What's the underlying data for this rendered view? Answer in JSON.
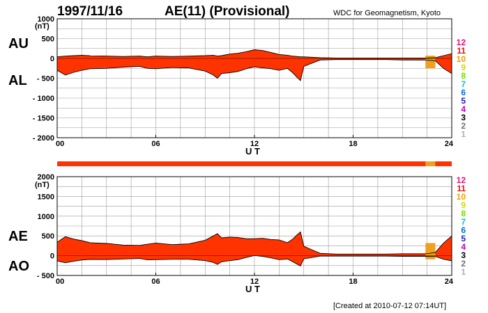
{
  "header": {
    "date": "1997/11/16",
    "title": "AE(11) (Provisional)",
    "source": "WDC for Geomagnetism, Kyoto"
  },
  "footer": {
    "created": "[Created at 2010-07-12 07:14UT]"
  },
  "legend_levels": [
    {
      "label": "12",
      "color": "#e8107a"
    },
    {
      "label": "11",
      "color": "#e81010"
    },
    {
      "label": "10",
      "color": "#f0a000"
    },
    {
      "label": "9",
      "color": "#d8d800"
    },
    {
      "label": "8",
      "color": "#70e000"
    },
    {
      "label": "7",
      "color": "#00c8c8"
    },
    {
      "label": "6",
      "color": "#0070e0"
    },
    {
      "label": "5",
      "color": "#2020c0"
    },
    {
      "label": "4",
      "color": "#c000c0"
    },
    {
      "label": "3",
      "color": "#000000"
    },
    {
      "label": "2",
      "color": "#707070"
    },
    {
      "label": "1",
      "color": "#b0b0b0"
    }
  ],
  "colors": {
    "fill_11_stations": "#ff3300",
    "fill_10_stations": "#f0a020",
    "outline": "#000000"
  },
  "chart_data": [
    {
      "type": "area",
      "panel": "AU/AL",
      "upper_label": "AU",
      "lower_label": "AL",
      "unit": "(nT)",
      "xlabel": "U T",
      "xlim": [
        0,
        24
      ],
      "xticks": [
        "00",
        "06",
        "12",
        "18",
        "24"
      ],
      "ylim": [
        -2000,
        1000
      ],
      "yticks": [
        "1000",
        "500",
        "0",
        "- 500",
        "- 1000",
        "- 1500",
        "- 2000"
      ],
      "ytick_values": [
        1000,
        500,
        0,
        -500,
        -1000,
        -1500,
        -2000
      ],
      "grid": true,
      "x": [
        0,
        0.5,
        1,
        1.5,
        2,
        3,
        4,
        5,
        5.5,
        6,
        7,
        8,
        9,
        9.5,
        9.75,
        10,
        10.5,
        11,
        11.5,
        12,
        12.5,
        13,
        13.5,
        14,
        14.3,
        14.6,
        14.8,
        15,
        15.5,
        16,
        17,
        18,
        19,
        20,
        21,
        22,
        22.5,
        23,
        23.5,
        24
      ],
      "AU": [
        40,
        60,
        70,
        80,
        70,
        60,
        50,
        60,
        40,
        60,
        50,
        60,
        70,
        80,
        60,
        70,
        110,
        130,
        170,
        220,
        200,
        150,
        100,
        80,
        60,
        50,
        40,
        40,
        30,
        20,
        10,
        10,
        10,
        10,
        10,
        10,
        10,
        20,
        70,
        120
      ],
      "AL": [
        -300,
        -420,
        -350,
        -300,
        -260,
        -250,
        -220,
        -200,
        -250,
        -260,
        -230,
        -240,
        -320,
        -420,
        -500,
        -380,
        -360,
        -330,
        -260,
        -210,
        -240,
        -260,
        -300,
        -250,
        -350,
        -480,
        -560,
        -200,
        -120,
        -40,
        -30,
        -30,
        -30,
        -30,
        -40,
        -40,
        -40,
        -60,
        -250,
        -380
      ],
      "coverage_bar": {
        "x_start": 22.4,
        "x_end": 23.0,
        "level": "10"
      }
    },
    {
      "type": "area",
      "panel": "AE/AO",
      "upper_label": "AE",
      "lower_label": "AO",
      "unit": "(nT)",
      "xlabel": "U T",
      "xlim": [
        0,
        24
      ],
      "xticks": [
        "00",
        "06",
        "12",
        "18",
        "24"
      ],
      "ylim": [
        -500,
        2000
      ],
      "yticks": [
        "2000",
        "1500",
        "1000",
        "500",
        "0",
        "- 500"
      ],
      "ytick_values": [
        2000,
        1500,
        1000,
        500,
        0,
        -500
      ],
      "grid": true,
      "x": [
        0,
        0.5,
        1,
        1.5,
        2,
        3,
        4,
        5,
        5.5,
        6,
        7,
        8,
        9,
        9.5,
        9.75,
        10,
        10.5,
        11,
        11.5,
        12,
        12.5,
        13,
        13.5,
        14,
        14.3,
        14.6,
        14.8,
        15,
        15.5,
        16,
        17,
        18,
        19,
        20,
        21,
        22,
        22.5,
        23,
        23.5,
        24
      ],
      "AE": [
        340,
        480,
        420,
        380,
        330,
        310,
        270,
        260,
        290,
        320,
        280,
        300,
        390,
        500,
        560,
        450,
        470,
        460,
        430,
        430,
        440,
        410,
        400,
        330,
        410,
        530,
        600,
        240,
        150,
        60,
        40,
        40,
        40,
        40,
        50,
        50,
        50,
        80,
        320,
        500
      ],
      "AO": [
        -130,
        -180,
        -140,
        -110,
        -95,
        -95,
        -85,
        -70,
        -105,
        -100,
        -90,
        -90,
        -125,
        -170,
        -220,
        -155,
        -125,
        -100,
        -45,
        5,
        -20,
        -55,
        -100,
        -85,
        -145,
        -215,
        -260,
        -80,
        -45,
        -10,
        -10,
        -10,
        -10,
        -10,
        -15,
        -15,
        -15,
        -20,
        -90,
        -130
      ]
    }
  ]
}
